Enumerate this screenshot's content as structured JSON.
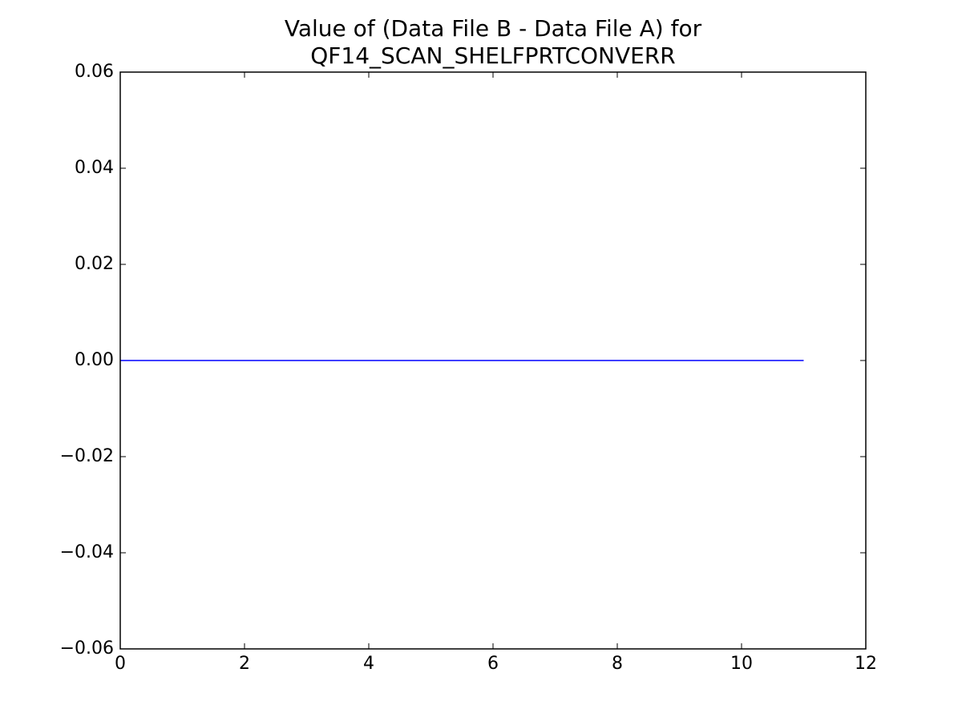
{
  "chart_data": {
    "type": "line",
    "title": [
      "Value of (Data File B - Data File A) for",
      "QF14_SCAN_SHELFPRTCONVERR"
    ],
    "x": [
      0,
      1,
      2,
      3,
      4,
      5,
      6,
      7,
      8,
      9,
      10,
      11
    ],
    "series": [
      {
        "color": "#0000ff",
        "values": [
          0,
          0,
          0,
          0,
          0,
          0,
          0,
          0,
          0,
          0,
          0,
          0
        ]
      }
    ],
    "xlim": [
      0,
      12
    ],
    "xticks": [
      0,
      2,
      4,
      6,
      8,
      10,
      12
    ],
    "ylim": [
      -0.06,
      0.06
    ],
    "yticks": [
      {
        "value": -0.06,
        "label": "−0.06"
      },
      {
        "value": -0.04,
        "label": "−0.04"
      },
      {
        "value": -0.02,
        "label": "−0.02"
      },
      {
        "value": 0,
        "label": "0.00"
      },
      0.02,
      0.04,
      0.06
    ],
    "grid": false
  }
}
